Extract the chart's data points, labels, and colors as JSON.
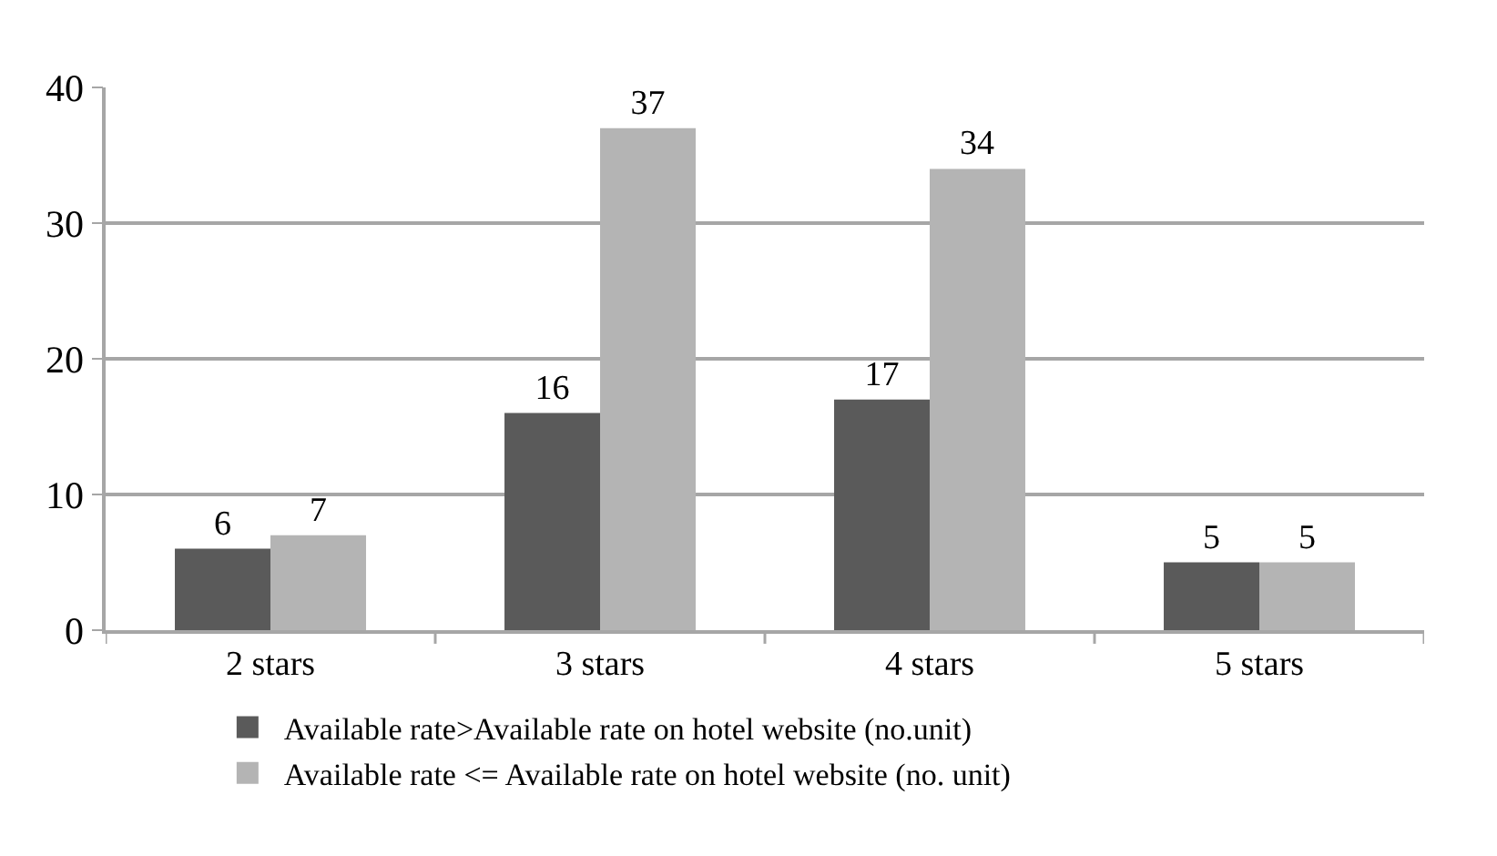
{
  "chart_data": {
    "type": "bar",
    "categories": [
      "2 stars",
      "3 stars",
      "4 stars",
      "5 stars"
    ],
    "series": [
      {
        "name": "Available rate>Available rate on hotel website (no.unit)",
        "color": "#5a5a5a",
        "values": [
          6,
          16,
          17,
          5
        ]
      },
      {
        "name": "Available rate <= Available rate on hotel website (no. unit)",
        "color": "#b4b4b4",
        "values": [
          7,
          37,
          34,
          5
        ]
      }
    ],
    "ylim": [
      0,
      40
    ],
    "yticks": [
      0,
      10,
      20,
      30,
      40
    ],
    "grid": "y",
    "legend": "bottom",
    "data_labels": true
  }
}
